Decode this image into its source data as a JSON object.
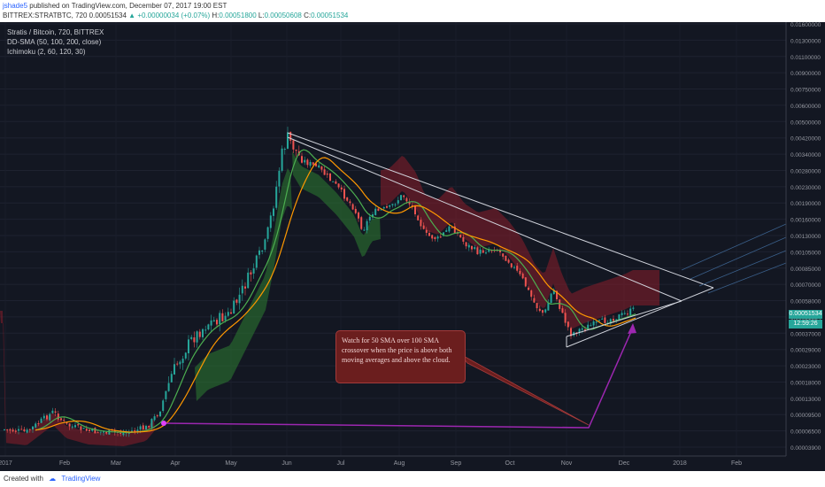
{
  "header": {
    "user": "jshade5",
    "published": " published on TradingView.com, December 07, 2017 19:00 EST",
    "symbol": "BITTREX:STRATBTC, 720",
    "open": "0.00051534",
    "change": "+0.00000034 (+0.07%)",
    "high_label": "H:",
    "high": "0.00051800",
    "low_label": "L:",
    "low": "0.00050608",
    "close_label": "C:",
    "close": "0.00051534"
  },
  "legend": {
    "title": "Stratis / Bitcoin, 720, BITTREX",
    "sma": "DD-SMA (50, 100, 200, close)",
    "ichimoku": "Ichimoku (2, 60, 120, 30)"
  },
  "annotation": {
    "text": "Watch for 50 SMA over 100 SMA crossover when the price is above both moving averages and above the cloud."
  },
  "price_axis": {
    "labels": [
      "0.01600000",
      "0.01300000",
      "0.01100000",
      "0.00900000",
      "0.00750000",
      "0.00600000",
      "0.00500000",
      "0.00420000",
      "0.00340000",
      "0.00280000",
      "0.00230000",
      "0.00190000",
      "0.00160000",
      "0.00130000",
      "0.00105000",
      "0.00085000",
      "0.00070000",
      "0.00058000",
      "0.00051534",
      "0.00037000",
      "0.00029000",
      "0.00023000",
      "0.00018000",
      "0.00013000",
      "0.00009500",
      "0.00006500",
      "0.00003900"
    ],
    "current_price": "0.00051534",
    "countdown": "12:59:26"
  },
  "time_axis": {
    "labels": [
      "2017",
      "Feb",
      "Mar",
      "Apr",
      "May",
      "Jun",
      "Jul",
      "Aug",
      "Sep",
      "Oct",
      "Nov",
      "Dec",
      "2018",
      "Feb"
    ]
  },
  "colors": {
    "background": "#131722",
    "bull": "#26a69a",
    "bear": "#ef5350",
    "sma50": "#4caf50",
    "sma100": "#ff9800",
    "cloud_bull": "#2e7d32",
    "cloud_bear": "#8b1e2a",
    "trendline": "#d1d4dc",
    "arrow": "#9c27b0"
  },
  "footer": {
    "created": "Created with",
    "brand": "TradingView"
  }
}
